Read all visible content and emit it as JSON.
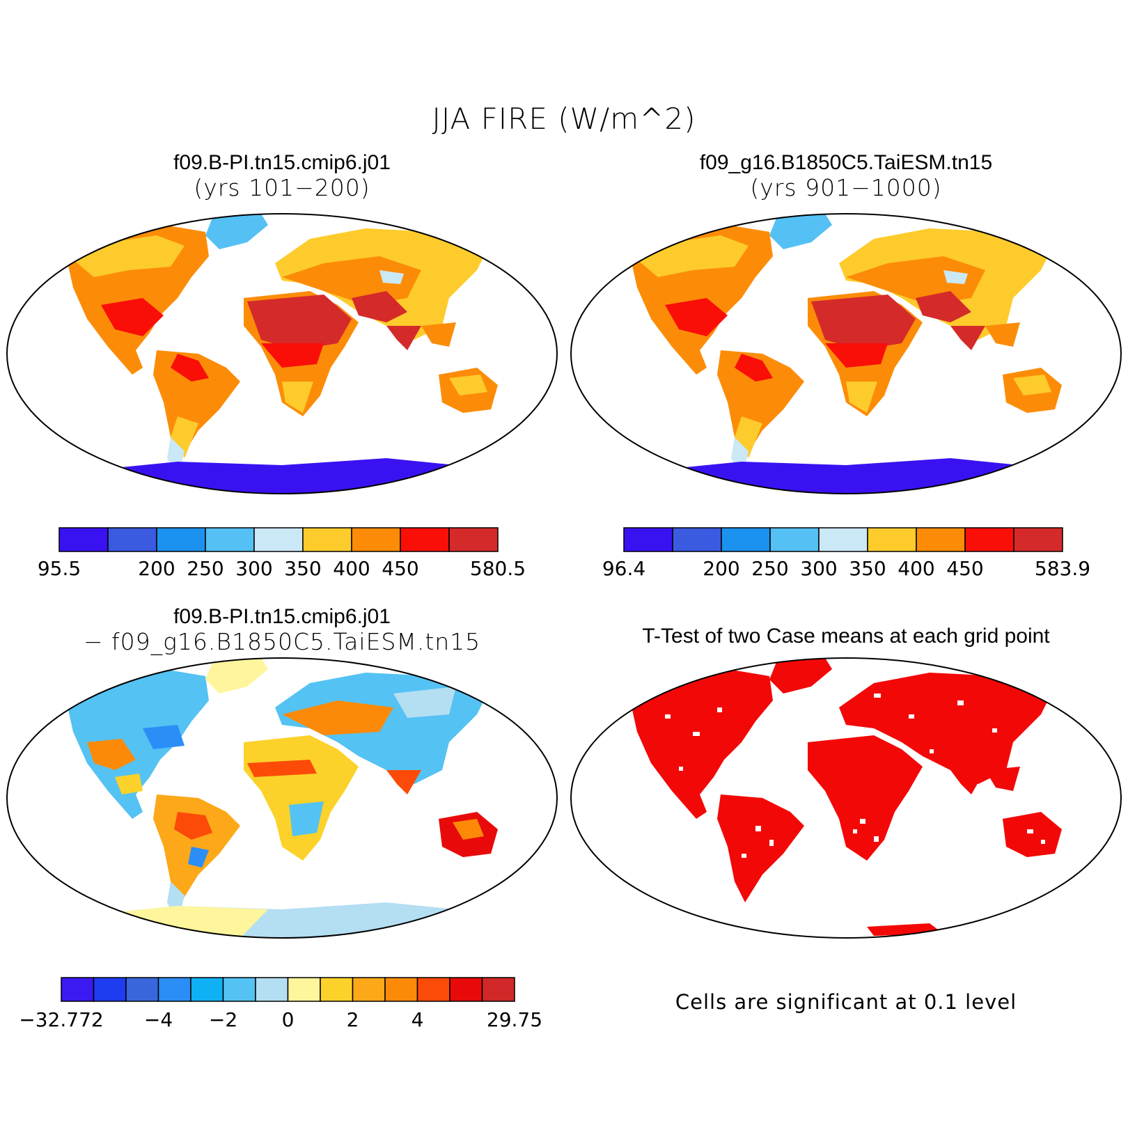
{
  "title": "JJA FIRE (W/m^2)",
  "panels": [
    {
      "title_line1": "f09.B-PI.tn15.cmip6.j01",
      "title_line2": "(yrs 101−200)",
      "colorbar": {
        "colors": [
          "#3a12f2",
          "#3a5ae0",
          "#1c92f0",
          "#55c0f4",
          "#cbe8f6",
          "#fdcb2c",
          "#fc8c08",
          "#f90f08",
          "#d52a2a"
        ],
        "labels": [
          "95.5",
          "200",
          "250",
          "300",
          "350",
          "400",
          "450",
          "580.5"
        ],
        "label_boxes": [
          0,
          2,
          3,
          4,
          5,
          6,
          7,
          9
        ]
      }
    },
    {
      "title_line1": "f09_g16.B1850C5.TaiESM.tn15",
      "title_line2": "(yrs 901−1000)",
      "colorbar": {
        "colors": [
          "#3a12f2",
          "#3a5ae0",
          "#1c92f0",
          "#55c0f4",
          "#cbe8f6",
          "#fdcb2c",
          "#fc8c08",
          "#f90f08",
          "#d52a2a"
        ],
        "labels": [
          "96.4",
          "200",
          "250",
          "300",
          "350",
          "400",
          "450",
          "583.9"
        ],
        "label_boxes": [
          0,
          2,
          3,
          4,
          5,
          6,
          7,
          9
        ]
      }
    },
    {
      "title_line1": "f09.B-PI.tn15.cmip6.j01",
      "title_line2": "− f09_g16.B1850C5.TaiESM.tn15",
      "colorbar": {
        "colors": [
          "#3b1af2",
          "#1e3cf0",
          "#3a66dc",
          "#2a8ef6",
          "#10b0f4",
          "#54c2f2",
          "#b4def2",
          "#fff59c",
          "#fcd22a",
          "#fca818",
          "#fc8a08",
          "#fc4a08",
          "#e80a0a",
          "#d02828"
        ],
        "labels": [
          "−32.772",
          "−4",
          "−2",
          "0",
          "2",
          "4",
          "29.75"
        ],
        "label_boxes": [
          0,
          3,
          5,
          7,
          9,
          11,
          14
        ]
      }
    },
    {
      "title_line1": "T-Test of two Case means at each grid point",
      "note": "Cells are significant at 0.1 level"
    }
  ]
}
